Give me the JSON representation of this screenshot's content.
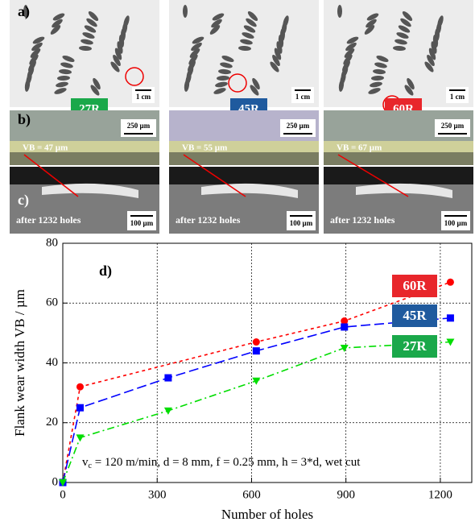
{
  "chart_data": {
    "type": "line",
    "panel_label": "d)",
    "x_label": "Number of holes",
    "y_label": "Flank wear width VB / µm",
    "annotation": [
      "v",
      "c",
      " = 120 m/min, d = 8 mm, f = 0.25 mm, h = 3*d, wet cut"
    ],
    "xlim": [
      0,
      1300
    ],
    "xticks": [
      0,
      300,
      600,
      900,
      1200
    ],
    "ylim": [
      0,
      80
    ],
    "yticks": [
      0,
      20,
      40,
      60,
      80
    ],
    "grid": true,
    "series": [
      {
        "name": "60R",
        "color": "#ff0000",
        "box_color": "#e8262b",
        "marker": "circle",
        "dash": "4,4",
        "x": [
          0,
          55,
          615,
          895,
          1232
        ],
        "values": [
          0,
          32,
          47,
          54,
          67
        ]
      },
      {
        "name": "45R",
        "color": "#0000ff",
        "box_color": "#1f5a9e",
        "marker": "square",
        "dash": "12,5",
        "x": [
          0,
          55,
          335,
          615,
          895,
          1232
        ],
        "values": [
          0,
          25,
          35,
          44,
          52,
          55
        ]
      },
      {
        "name": "27R",
        "color": "#00dd00",
        "box_color": "#1aa84a",
        "marker": "triangle",
        "dash": "9,4,2,4",
        "x": [
          0,
          55,
          335,
          615,
          895,
          1232
        ],
        "values": [
          0,
          15,
          24,
          34,
          45,
          47
        ]
      }
    ]
  },
  "photos": {
    "panel_labels": [
      "a)",
      "b)",
      "c)"
    ],
    "scale_a": "1 cm",
    "scale_b": "250 µm",
    "scale_c": "100 µm",
    "vb_labels": [
      "VB = 47 µm",
      "VB = 55 µm",
      "VB = 67 µm"
    ],
    "hole_label": "after 1232 holes"
  }
}
